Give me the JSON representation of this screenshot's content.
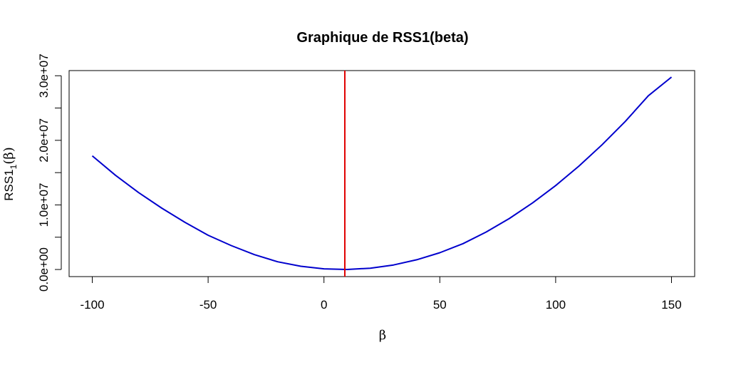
{
  "chart_data": {
    "type": "line",
    "title": "Graphique de RSS1(beta)",
    "xlabel": "β",
    "ylabel": {
      "main": "RSS1",
      "subscript": "1",
      "suffix": "(β)"
    },
    "xlim": [
      -110,
      160
    ],
    "ylim": [
      -1100000,
      30800000
    ],
    "x_ticks": [
      {
        "value": -100,
        "label": "-100"
      },
      {
        "value": -50,
        "label": "-50"
      },
      {
        "value": 0,
        "label": "0"
      },
      {
        "value": 50,
        "label": "50"
      },
      {
        "value": 100,
        "label": "100"
      },
      {
        "value": 150,
        "label": "150"
      }
    ],
    "y_ticks": [
      {
        "value": 0,
        "label": "0.0e+00"
      },
      {
        "value": 5000000,
        "label": ""
      },
      {
        "value": 10000000,
        "label": "1.0e+07"
      },
      {
        "value": 15000000,
        "label": ""
      },
      {
        "value": 20000000,
        "label": "2.0e+07"
      },
      {
        "value": 25000000,
        "label": ""
      },
      {
        "value": 30000000,
        "label": "3.0e+07"
      }
    ],
    "series": [
      {
        "color": "#0000CD",
        "x": [
          -100,
          -90,
          -80,
          -70,
          -60,
          -50,
          -40,
          -30,
          -20,
          -10,
          0,
          10,
          20,
          30,
          40,
          50,
          60,
          70,
          80,
          90,
          100,
          110,
          120,
          130,
          140,
          150
        ],
        "y": [
          17600000,
          14600000,
          11900000,
          9500000,
          7300000,
          5300000,
          3700000,
          2300000,
          1200000,
          500000,
          100000,
          0,
          200000,
          700000,
          1500000,
          2600000,
          4000000,
          5800000,
          7900000,
          10300000,
          13000000,
          16000000,
          19300000,
          22900000,
          26900000,
          29800000
        ]
      }
    ],
    "vline": {
      "x": 9,
      "color": "#E00000"
    },
    "grid": false,
    "legend": "none"
  }
}
